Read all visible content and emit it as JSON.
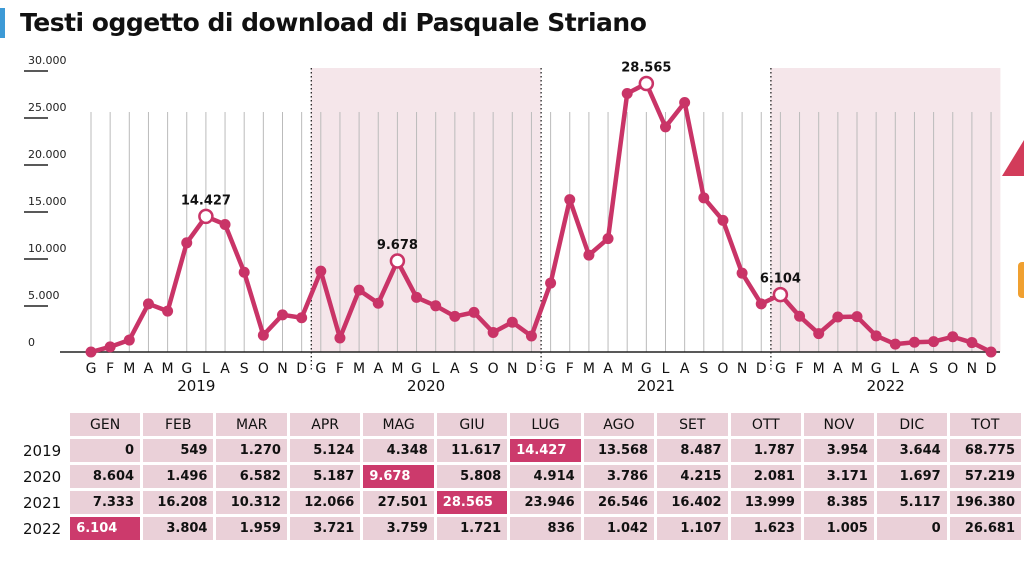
{
  "title": "Testi oggetto di download di Pasquale Striano",
  "colors": {
    "line": "#c93467",
    "shade": "#f5e6ea",
    "accent_bar": "#3d9ad6",
    "cell": "#ead0d8",
    "highlight": "#cc3a6c"
  },
  "chart_data": {
    "type": "line",
    "title": "Testi oggetto di download di Pasquale Striano",
    "ylim": [
      0,
      30000
    ],
    "yticks": [
      "0",
      "5.000",
      "10.000",
      "15.000",
      "20.000",
      "25.000",
      "30.000"
    ],
    "yticks_values": [
      0,
      5000,
      10000,
      15000,
      20000,
      25000,
      30000
    ],
    "month_ticks": [
      "G",
      "F",
      "M",
      "A",
      "M",
      "G",
      "L",
      "A",
      "S",
      "O",
      "N",
      "D"
    ],
    "years": [
      "2019",
      "2020",
      "2021",
      "2022"
    ],
    "shaded_years": [
      "2020",
      "2022"
    ],
    "grid": "vertical",
    "series": [
      {
        "values": [
          0,
          549,
          1270,
          5124,
          4348,
          11617,
          14427,
          13568,
          8487,
          1787,
          3954,
          3644,
          8604,
          1496,
          6582,
          5187,
          9678,
          5808,
          4914,
          3786,
          4215,
          2081,
          3171,
          1697,
          7333,
          16208,
          10312,
          12066,
          27501,
          28565,
          23946,
          26546,
          16402,
          13999,
          8385,
          5117,
          6104,
          3804,
          1959,
          3721,
          3759,
          1721,
          836,
          1042,
          1107,
          1623,
          1005,
          0
        ]
      }
    ],
    "annotations": [
      {
        "index": 6,
        "label": "14.427"
      },
      {
        "index": 16,
        "label": "9.678"
      },
      {
        "index": 29,
        "label": "28.565"
      },
      {
        "index": 36,
        "label": "6.104"
      }
    ]
  },
  "table": {
    "headers": [
      "GEN",
      "FEB",
      "MAR",
      "APR",
      "MAG",
      "GIU",
      "LUG",
      "AGO",
      "SET",
      "OTT",
      "NOV",
      "DIC",
      "TOT"
    ],
    "rows": [
      {
        "year": "2019",
        "cells": [
          "0",
          "549",
          "1.270",
          "5.124",
          "4.348",
          "11.617",
          "14.427",
          "13.568",
          "8.487",
          "1.787",
          "3.954",
          "3.644",
          "68.775"
        ],
        "highlight": 6
      },
      {
        "year": "2020",
        "cells": [
          "8.604",
          "1.496",
          "6.582",
          "5.187",
          "9.678",
          "5.808",
          "4.914",
          "3.786",
          "4.215",
          "2.081",
          "3.171",
          "1.697",
          "57.219"
        ],
        "highlight": 4
      },
      {
        "year": "2021",
        "cells": [
          "7.333",
          "16.208",
          "10.312",
          "12.066",
          "27.501",
          "28.565",
          "23.946",
          "26.546",
          "16.402",
          "13.999",
          "8.385",
          "5.117",
          "196.380"
        ],
        "highlight": 5
      },
      {
        "year": "2022",
        "cells": [
          "6.104",
          "3.804",
          "1.959",
          "3.721",
          "3.759",
          "1.721",
          "836",
          "1.042",
          "1.107",
          "1.623",
          "1.005",
          "0",
          "26.681"
        ],
        "highlight": 0
      }
    ]
  }
}
